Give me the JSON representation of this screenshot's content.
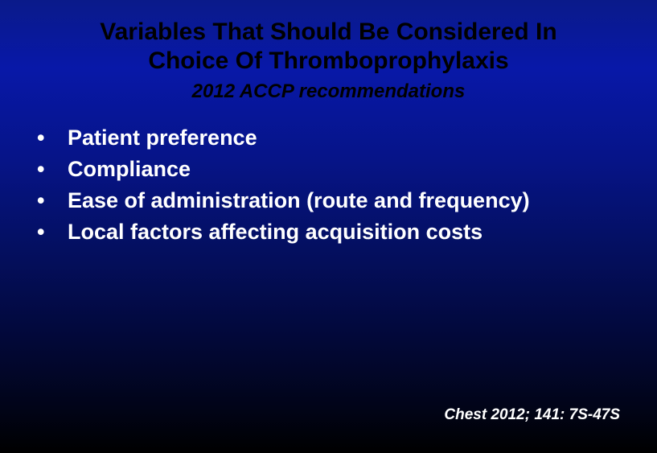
{
  "slide": {
    "title_line1": "Variables That Should Be Considered In",
    "title_line2": "Choice Of Thromboprophylaxis",
    "subtitle": "2012 ACCP recommendations",
    "bullets": [
      "Patient preference",
      "Compliance",
      "Ease of administration (route and frequency)",
      "Local factors affecting acquisition costs"
    ],
    "citation": "Chest 2012; 141: 7S-47S",
    "style": {
      "background_gradient_top": "#0a1a8a",
      "background_gradient_bottom": "#000000",
      "title_color": "#000000",
      "title_fontsize": 30,
      "subtitle_color": "#000000",
      "subtitle_fontsize": 24,
      "bullet_color": "#ffffff",
      "bullet_fontsize": 27,
      "citation_color": "#ffffff",
      "citation_fontsize": 19,
      "bullet_marker": "•"
    }
  }
}
